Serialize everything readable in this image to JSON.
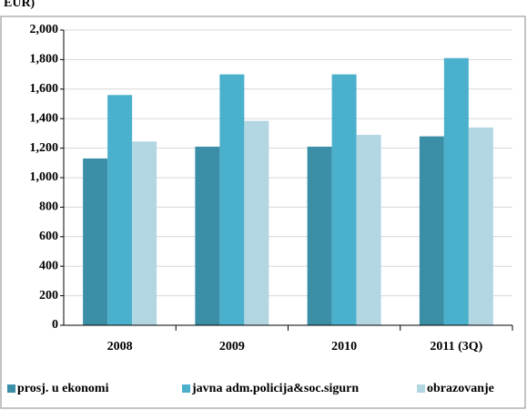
{
  "chart_data": {
    "type": "bar",
    "title": "EUR)",
    "categories": [
      "2008",
      "2009",
      "2010",
      "2011 (3Q)"
    ],
    "series": [
      {
        "name": "prosj. u ekonomi",
        "color": "#3a8ea5",
        "values": [
          1130,
          1210,
          1210,
          1280
        ]
      },
      {
        "name": "javna adm.policija&soc.sigurn",
        "color": "#4bb0cc",
        "values": [
          1560,
          1700,
          1700,
          1810
        ]
      },
      {
        "name": "obrazovanje",
        "color": "#b3d6e3",
        "values": [
          1245,
          1385,
          1290,
          1340
        ]
      }
    ],
    "ylim": [
      0,
      2000
    ],
    "yticks": [
      0,
      200,
      400,
      600,
      800,
      {
        "value": 1000,
        "label": "1,000"
      },
      {
        "value": 1200,
        "label": "1,200"
      },
      {
        "value": 1400,
        "label": "1,400"
      },
      {
        "value": 1600,
        "label": "1,600"
      },
      {
        "value": 1800,
        "label": "1,800"
      },
      {
        "value": 2000,
        "label": "2,000"
      }
    ],
    "grid": true
  }
}
